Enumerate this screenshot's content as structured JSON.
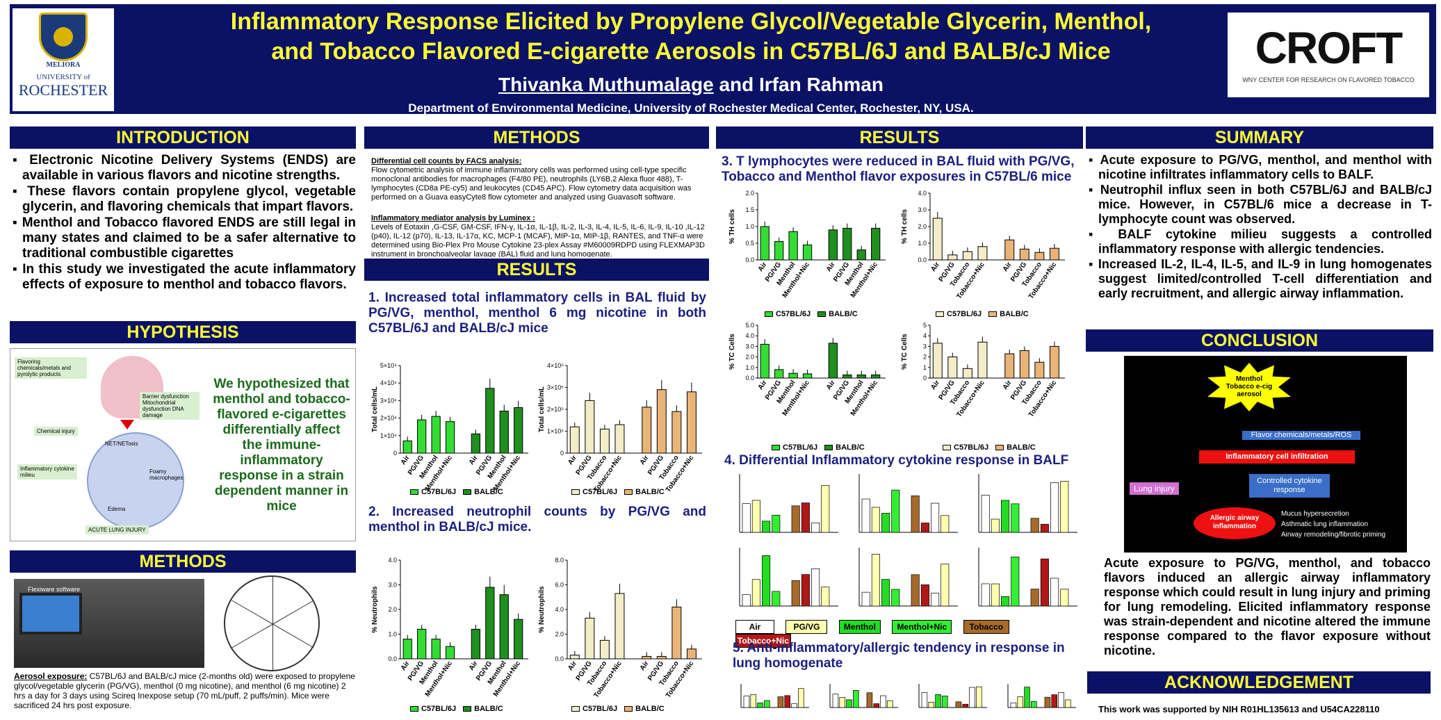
{
  "header": {
    "title_line1": "Inflammatory Response Elicited by Propylene Glycol/Vegetable Glycerin, Menthol,",
    "title_line2": "and Tobacco Flavored E-cigarette Aerosols in C57BL/6J and BALB/cJ Mice",
    "author1": "Thivanka Muthumalage",
    "author_rest": " and Irfan Rahman",
    "affiliation": "Department of Environmental Medicine, University of Rochester Medical Center,  Rochester, NY, USA.",
    "logo_left": {
      "meliora": "MELIORA",
      "line1": "UNIVERSITY of",
      "line2": "ROCHESTER"
    },
    "logo_right": {
      "word": "CROFT",
      "sub": "WNY CENTER FOR RESEARCH ON FLAVORED TOBACCO"
    }
  },
  "sections": {
    "introduction": "INTRODUCTION",
    "hypothesis": "HYPOTHESIS",
    "methods": "METHODS",
    "results": "RESULTS",
    "summary": "SUMMARY",
    "conclusion": "CONCLUSION",
    "acknowledgement": "ACKNOWLEDGEMENT"
  },
  "introduction": [
    "Electronic Nicotine Delivery Systems (ENDS) are available in various flavors and nicotine strengths.",
    "These flavors contain propylene glycol, vegetable glycerin, and flavoring chemicals that impart flavors.",
    "Menthol and Tobacco flavored ENDS are still legal in many states and claimed to be a safer alternative to traditional combustible cigarettes",
    "In this study we investigated the acute inflammatory effects of exposure to menthol and tobacco flavors."
  ],
  "hypothesis": {
    "text": "We hypothesized that menthol and tobacco-flavored e-cigarettes differentially affect the immune-inflammatory response in a strain dependent manner in mice",
    "labels": [
      "Flavoring chemicals/metals and pyrolytic products",
      "Barrier dysfunction Mitochondrial dysfunction DNA damage",
      "Chemical injury",
      "Inflammatory cytokine milieu",
      "ACUTE LUNG INJURY",
      "NET/NETosis",
      "Foamy macrophages",
      "Edema"
    ]
  },
  "methods_left": {
    "photo_label": "Flexiware software",
    "aerosol_title": "Aerosol exposure:",
    "aerosol_text": " C57BL/6J and BALB/cJ mice (2-months old) were exposed to propylene glycol/vegetable glycerin (PG/VG), menthol (0 mg nicotine), and menthol (6 mg nicotine) 2 hrs a day for 3 days using Scireq Inexpose setup (70 mL/puff, 2 puffs/min). Mice were sacrificed 24 hrs post exposure."
  },
  "methods_mid": {
    "facs_title": "Differential cell counts by FACS analysis:",
    "facs_text": "Flow cytometric analysis of immune inflammatory cells was performed using cell-type specific monoclonal antibodies for macrophages (F4/80 PE), neutrophils (LY6B.2 Alexa fluor 488), T-lymphocytes (CD8a PE-cy5) and leukocytes (CD45 APC). Flow cytometry data acquisition was performed on a Guava easyCyte8 flow cytometer and analyzed using Guavasoft software.",
    "lumi_title": "Inflammatory mediator analysis by Luminex :",
    "lumi_text": "Levels of Eotaxin ,G-CSF, GM-CSF, IFN-γ, IL-1α, IL-1β, IL-2, IL-3, IL-4, IL-5, IL-6, IL-9, IL-10 ,IL-12 (p40), IL-12 (p70), IL-13, IL-17α, KC, MCP-1 (MCAF), MIP-1α, MIP-1β, RANTES, and TNF-α were determined using Bio-Plex Pro Mouse Cytokine 23-plex Assay #M60009RDPD using FLEXMAP3D instrument in bronchoalveolar lavage (BAL) fluid and lung homogenate."
  },
  "results": {
    "h1": "1. Increased total inflammatory cells in BAL fluid by PG/VG, menthol, menthol 6 mg nicotine in both C57BL/6J and BALB/cJ mice",
    "h2": "2.  Increased neutrophil counts by PG/VG and menthol in BALB/cJ mice.",
    "h3": "3. T lymphocytes were reduced in BAL fluid with PG/VG, Tobacco and Menthol flavor exposures  in C57BL/6 mice",
    "h4": "4. Differential Inflammatory cytokine response in BALF",
    "h5": "5.  Anti-inflammatory/allergic tendency in response in lung homogenate"
  },
  "legends": {
    "green_a": "C57BL/6J",
    "green_b": "BALB/C",
    "tan_a": "C57BL/6J",
    "tan_b": "BALB/C"
  },
  "cytokine_legend": [
    "Air",
    "PG/VG",
    "Menthol",
    "Menthol+Nic",
    "Tobacco",
    "Tobacco+Nic"
  ],
  "summary": [
    "Acute exposure to PG/VG, menthol, and menthol with nicotine infiltrates inflammatory cells to BALF.",
    "Neutrophil influx seen in both C57BL/6J and BALB/cJ mice. However, in C57BL/6 mice a decrease in T-lymphocyte count was observed.",
    "BALF cytokine milieu suggests a controlled inflammatory response with allergic tendencies.",
    "Increased IL-2, IL-4, IL-5, and IL-9 in lung homogenates suggest limited/controlled T-cell differentiation and early recruitment, and allergic airway inflammation."
  ],
  "conclusion": {
    "burst": "Menthol Tobacco e-cig aerosol",
    "box1": "Flavor chemicals/metals/ROS",
    "box2": "Inflammatory cell infiltration",
    "box3": "Controlled cytokine response",
    "lung_injury": "Lung injury",
    "oval": "Allergic airway inflammation",
    "bullets": [
      "Mucus hypersecretion",
      "Asthmatic lung inflammation",
      "Airway remodeling/fibrotic priming"
    ],
    "text": "Acute exposure to PG/VG, menthol, and tobacco flavors induced an allergic airway inflammatory response which could result in lung injury and priming for lung remodeling.  Elicited inflammatory response was strain-dependent and nicotine altered the immune response compared to the flavor exposure without nicotine."
  },
  "acknowledgement": "This work was supported by NIH R01HL135613 and U54CA228110",
  "colors": {
    "navy": "#0b1266",
    "yellow": "#ffff33",
    "green_light": "#33dd33",
    "green_dark": "#1f8f1f",
    "cream": "#f3ecc8",
    "tan": "#e8b478"
  },
  "chart_data": [
    {
      "type": "bar",
      "ylabel": "Total cells/mL",
      "categories": [
        "Air",
        "PG/VG",
        "Menthol",
        "Menthol+Nic",
        "Air",
        "PG/VG",
        "Menthol",
        "Menthol+Nic"
      ],
      "values": [
        7000,
        19000,
        21000,
        18000,
        11000,
        37000,
        24000,
        26000
      ],
      "ylim": [
        0,
        50000
      ],
      "yticks": [
        "0",
        "1×10⁴",
        "2×10⁴",
        "3×10⁴",
        "4×10⁴",
        "5×10⁴"
      ],
      "colors": [
        "#33dd33",
        "#33dd33",
        "#33dd33",
        "#33dd33",
        "#1f8f1f",
        "#1f8f1f",
        "#1f8f1f",
        "#1f8f1f"
      ]
    },
    {
      "type": "bar",
      "ylabel": "Total cells/mL",
      "categories": [
        "Air",
        "PG/VG",
        "Tobacco",
        "Tobacco+Nic",
        "Air",
        "PG/VG",
        "Tobacco",
        "Tobacco+Nic"
      ],
      "values": [
        120000,
        240000,
        110000,
        130000,
        210000,
        290000,
        190000,
        280000
      ],
      "ylim": [
        0,
        400000
      ],
      "yticks": [
        "0",
        "1×10⁵",
        "2×10⁵",
        "3×10⁵",
        "4×10⁵"
      ],
      "colors": [
        "#f3ecc8",
        "#f3ecc8",
        "#f3ecc8",
        "#f3ecc8",
        "#e8b478",
        "#e8b478",
        "#e8b478",
        "#e8b478"
      ]
    },
    {
      "type": "bar",
      "ylabel": "% Neutrophils",
      "categories": [
        "Air",
        "PG/VG",
        "Menthol",
        "Menthol+Nic",
        "Air",
        "PG/VG",
        "Menthol",
        "Menthol+Nic"
      ],
      "values": [
        0.8,
        1.2,
        0.8,
        0.5,
        1.2,
        2.9,
        2.6,
        1.6
      ],
      "ylim": [
        0,
        4
      ],
      "yticks": [
        "0.0",
        "1.0",
        "2.0",
        "3.0",
        "4.0"
      ],
      "colors": [
        "#33dd33",
        "#33dd33",
        "#33dd33",
        "#33dd33",
        "#1f8f1f",
        "#1f8f1f",
        "#1f8f1f",
        "#1f8f1f"
      ]
    },
    {
      "type": "bar",
      "ylabel": "% Neutrophils",
      "categories": [
        "Air",
        "PG/VG",
        "Tobacco",
        "Tobacco+Nic",
        "Air",
        "PG/VG",
        "Tobacco",
        "Tobacco+Nic"
      ],
      "values": [
        0.3,
        3.3,
        1.5,
        5.3,
        0.2,
        0.2,
        4.2,
        0.8
      ],
      "ylim": [
        0,
        8
      ],
      "yticks": [
        "0.0",
        "2.0",
        "4.0",
        "6.0",
        "8.0"
      ],
      "colors": [
        "#f3ecc8",
        "#f3ecc8",
        "#f3ecc8",
        "#f3ecc8",
        "#e8b478",
        "#e8b478",
        "#e8b478",
        "#e8b478"
      ]
    },
    {
      "type": "bar",
      "ylabel": "% TH cells",
      "categories": [
        "Air",
        "PG/VG",
        "Menthol",
        "Menthol+Nic",
        "Air",
        "PG/VG",
        "Menthol",
        "Menthol+Nic"
      ],
      "values": [
        1.0,
        0.55,
        0.85,
        0.45,
        0.9,
        0.95,
        0.3,
        0.95
      ],
      "ylim": [
        0,
        2
      ],
      "yticks": [
        "0.0",
        "0.5",
        "1.0",
        "1.5",
        "2.0"
      ],
      "colors": [
        "#33dd33",
        "#33dd33",
        "#33dd33",
        "#33dd33",
        "#1f8f1f",
        "#1f8f1f",
        "#1f8f1f",
        "#1f8f1f"
      ]
    },
    {
      "type": "bar",
      "ylabel": "% TH cells",
      "categories": [
        "Air",
        "PG/VG",
        "Tobacco",
        "Tobacco+Nic",
        "Air",
        "PG/VG",
        "Tobacco",
        "Tobacco+Nic"
      ],
      "values": [
        2.5,
        0.3,
        0.5,
        0.8,
        1.2,
        0.65,
        0.45,
        0.7
      ],
      "ylim": [
        0,
        4
      ],
      "yticks": [
        "0.0",
        "1.0",
        "2.0",
        "3.0",
        "4.0"
      ],
      "colors": [
        "#f3ecc8",
        "#f3ecc8",
        "#f3ecc8",
        "#f3ecc8",
        "#e8b478",
        "#e8b478",
        "#e8b478",
        "#e8b478"
      ]
    },
    {
      "type": "bar",
      "ylabel": "% TC Cells",
      "categories": [
        "Air",
        "PG/VG",
        "Menthol",
        "Menthol+Nic",
        "Air",
        "PG/VG",
        "Menthol",
        "Menthol+Nic"
      ],
      "values": [
        3.2,
        0.8,
        0.45,
        0.4,
        3.3,
        0.3,
        0.3,
        0.3
      ],
      "ylim": [
        0,
        5
      ],
      "yticks": [
        "0.0",
        "1.0",
        "2.0",
        "3.0",
        "4.0",
        "5.0"
      ],
      "colors": [
        "#33dd33",
        "#33dd33",
        "#33dd33",
        "#33dd33",
        "#1f8f1f",
        "#1f8f1f",
        "#1f8f1f",
        "#1f8f1f"
      ]
    },
    {
      "type": "bar",
      "ylabel": "% TC Cells",
      "categories": [
        "Air",
        "PG/VG",
        "Tobacco",
        "Tobacco+Nic",
        "Air",
        "PG/VG",
        "Tobacco",
        "Tobacco+Nic"
      ],
      "values": [
        3.3,
        2.0,
        0.9,
        3.4,
        2.3,
        2.6,
        1.5,
        3.0
      ],
      "ylim": [
        0,
        5
      ],
      "yticks": [
        "0",
        "1",
        "2",
        "3",
        "4",
        "5"
      ],
      "colors": [
        "#f3ecc8",
        "#f3ecc8",
        "#f3ecc8",
        "#f3ecc8",
        "#e8b478",
        "#e8b478",
        "#e8b478",
        "#e8b478"
      ]
    }
  ]
}
